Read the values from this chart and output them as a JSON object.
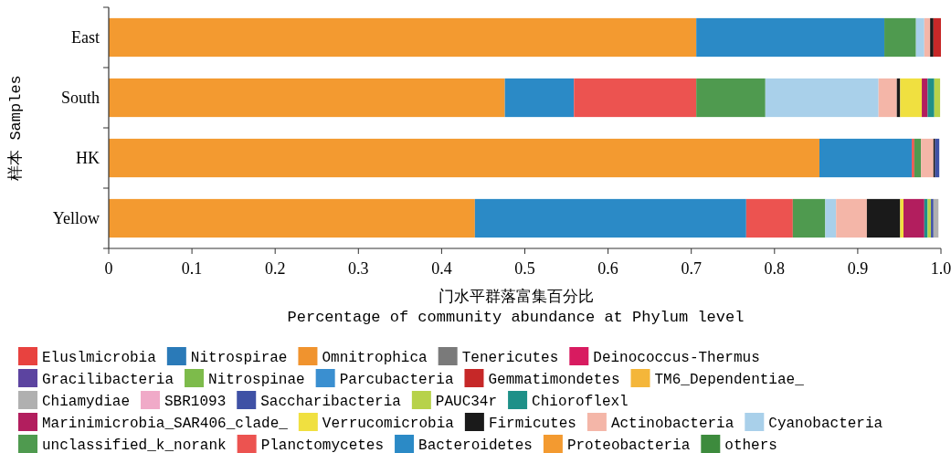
{
  "chart_data": {
    "type": "bar",
    "orientation": "horizontal",
    "stacked": true,
    "legend": "bottom",
    "xlabel": "门水平群落富集百分比\nPercentage of community abundance at Phylum level",
    "ylabel": "样本 Samples",
    "categories": [
      "East",
      "South",
      "HK",
      "Yellow"
    ],
    "xlim": [
      0,
      1
    ],
    "xticks": [
      0,
      0.1,
      0.2,
      0.3,
      0.4,
      0.5,
      0.6,
      0.7,
      0.8,
      0.9,
      {
        "value": 1,
        "label": "1.0"
      }
    ],
    "series": [
      {
        "name": "others",
        "color": "#3d8b3d",
        "values": [
          0,
          0,
          0,
          0
        ]
      },
      {
        "name": "Proteobacteria",
        "color": "#f39a30",
        "values": [
          0.706,
          0.476,
          0.854,
          0.44
        ]
      },
      {
        "name": "Bacteroidetes",
        "color": "#2b8ac6",
        "values": [
          0.226,
          0.083,
          0.111,
          0.326
        ]
      },
      {
        "name": "Planctomycetes",
        "color": "#ec5350",
        "values": [
          0,
          0.147,
          0.003,
          0.056
        ]
      },
      {
        "name": "unclassified_k_norank",
        "color": "#4f9a4f",
        "values": [
          0.038,
          0.083,
          0.008,
          0.039
        ]
      },
      {
        "name": "Cyanobacteria",
        "color": "#a9d0ea",
        "values": [
          0.01,
          0.136,
          0,
          0.013
        ]
      },
      {
        "name": "Actinobacteria",
        "color": "#f4b6a8",
        "values": [
          0.007,
          0.022,
          0.015,
          0.037
        ]
      },
      {
        "name": "Firmicutes",
        "color": "#1a1a1a",
        "values": [
          0.004,
          0.004,
          0.002,
          0.04
        ]
      },
      {
        "name": "Verrucomicrobia",
        "color": "#f0e040",
        "values": [
          0,
          0.026,
          0,
          0.004
        ]
      },
      {
        "name": "Marinimicrobia_SAR406_clade_",
        "color": "#b21e5e",
        "values": [
          0,
          0.007,
          0,
          0.025
        ]
      },
      {
        "name": "Chioroflexl",
        "color": "#1e9088",
        "values": [
          0,
          0.008,
          0,
          0.004
        ]
      },
      {
        "name": "PAUC34r",
        "color": "#b7d24a",
        "values": [
          0,
          0.007,
          0,
          0.004
        ]
      },
      {
        "name": "Saccharibacteria",
        "color": "#3f51a5",
        "values": [
          0,
          0,
          0.005,
          0.003
        ]
      },
      {
        "name": "SBR1093",
        "color": "#f0aac8",
        "values": [
          0,
          0,
          0,
          0
        ]
      },
      {
        "name": "Chiamydiae",
        "color": "#b0b0b0",
        "values": [
          0,
          0,
          0,
          0.006
        ]
      },
      {
        "name": "TM6_Dependentiae_",
        "color": "#f4b63a",
        "values": [
          0,
          0,
          0,
          0
        ]
      },
      {
        "name": "Gemmatimondetes",
        "color": "#c62828",
        "values": [
          0.009,
          0,
          0,
          0
        ]
      },
      {
        "name": "Parcubacteria",
        "color": "#3a8fd0",
        "values": [
          0,
          0,
          0,
          0
        ]
      },
      {
        "name": "Nitrospinae",
        "color": "#7dbb4b",
        "values": [
          0,
          0,
          0,
          0
        ]
      },
      {
        "name": "Gracilibacteria",
        "color": "#5c44a0",
        "values": [
          0,
          0,
          0,
          0
        ]
      },
      {
        "name": "Deinococcus-Thermus",
        "color": "#d81b60",
        "values": [
          0,
          0,
          0,
          0
        ]
      },
      {
        "name": "Tenericutes",
        "color": "#7a7a7a",
        "values": [
          0,
          0,
          0,
          0
        ]
      },
      {
        "name": "Omnitrophica",
        "color": "#f0932e",
        "values": [
          0,
          0,
          0,
          0
        ]
      },
      {
        "name": "Nitrospirae",
        "color": "#2a7ab8",
        "values": [
          0,
          0,
          0,
          0
        ]
      },
      {
        "name": "Eluslmicrobia",
        "color": "#e8423f",
        "values": [
          0,
          0,
          0,
          0
        ]
      }
    ]
  }
}
